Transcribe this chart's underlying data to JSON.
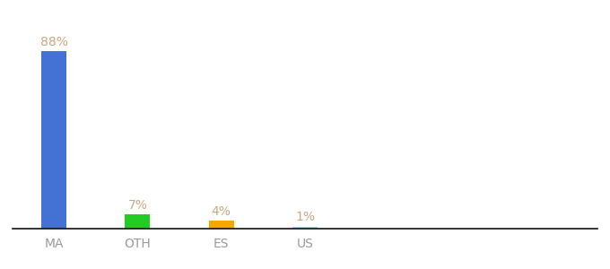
{
  "categories": [
    "MA",
    "OTH",
    "ES",
    "US"
  ],
  "values": [
    88,
    7,
    4,
    1
  ],
  "bar_colors": [
    "#4472d4",
    "#22cc22",
    "#f5a800",
    "#88ddff"
  ],
  "label_color": "#c8a882",
  "axis_label_color": "#999999",
  "background_color": "#ffffff",
  "ylim": [
    0,
    100
  ],
  "bar_width": 0.6,
  "label_fontsize": 10,
  "tick_fontsize": 10,
  "x_positions": [
    1,
    3,
    5,
    7
  ],
  "xlim": [
    0,
    14
  ]
}
